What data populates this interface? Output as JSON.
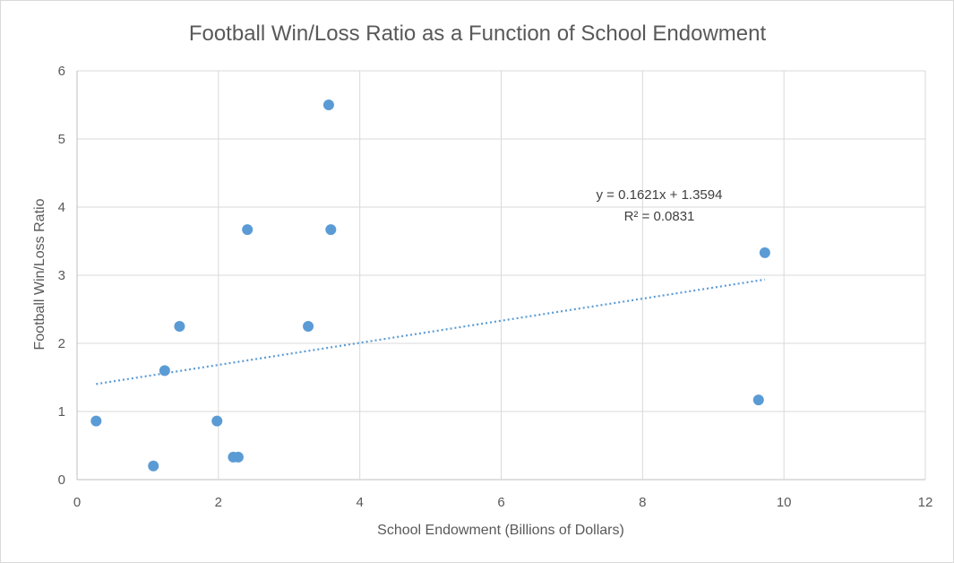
{
  "chart_data": {
    "type": "scatter",
    "title": "Football Win/Loss Ratio as a Function of School Endowment",
    "xlabel": "School Endowment (Billions of Dollars)",
    "ylabel": "Football Win/Loss Ratio",
    "xlim": [
      0,
      12
    ],
    "ylim": [
      0,
      6
    ],
    "x_ticks": [
      0,
      2,
      4,
      6,
      8,
      10,
      12
    ],
    "y_ticks": [
      0,
      1,
      2,
      3,
      4,
      5,
      6
    ],
    "grid": true,
    "legend": "none",
    "colors": {
      "points": "#5b9bd5",
      "trendline": "#5b9bd5",
      "grid": "#d9d9d9"
    },
    "points": [
      {
        "x": 0.27,
        "y": 0.86
      },
      {
        "x": 1.08,
        "y": 0.2
      },
      {
        "x": 1.24,
        "y": 1.6
      },
      {
        "x": 1.45,
        "y": 2.25
      },
      {
        "x": 1.98,
        "y": 0.86
      },
      {
        "x": 2.21,
        "y": 0.33
      },
      {
        "x": 2.28,
        "y": 0.33
      },
      {
        "x": 2.41,
        "y": 3.67
      },
      {
        "x": 3.27,
        "y": 2.25
      },
      {
        "x": 3.56,
        "y": 5.5
      },
      {
        "x": 3.59,
        "y": 3.67
      },
      {
        "x": 9.64,
        "y": 1.17
      },
      {
        "x": 9.73,
        "y": 3.33
      }
    ],
    "trendline": {
      "type": "linear",
      "slope": 0.1621,
      "intercept": 1.3594,
      "x_range": [
        0.27,
        9.73
      ],
      "equation": "y = 0.1621x + 1.3594",
      "r_squared": "R² = 0.0831"
    }
  }
}
